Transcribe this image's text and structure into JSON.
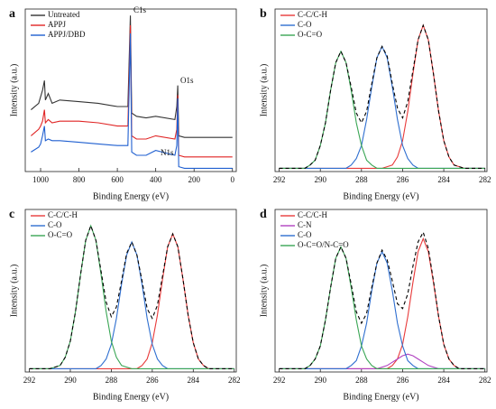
{
  "chart_data": [
    {
      "type": "line",
      "label": "a",
      "xlabel": "Binding Energy (eV)",
      "ylabel": "Intensity (a.u.)",
      "xlim": [
        1080,
        -20
      ],
      "xticks": [
        1000,
        800,
        600,
        400,
        200,
        0
      ],
      "ylim": [
        0,
        100
      ],
      "annotations": [
        "C1s",
        "O1s",
        "N1s"
      ],
      "x": [
        1050,
        1010,
        1000,
        990,
        980,
        975,
        960,
        940,
        900,
        800,
        700,
        600,
        545,
        532,
        525,
        500,
        450,
        400,
        300,
        290,
        285,
        280,
        250,
        200,
        100,
        0
      ],
      "series": [
        {
          "name": "Untreated",
          "color": "#333333",
          "values": [
            38,
            42,
            46,
            50,
            56,
            44,
            48,
            42,
            44,
            43,
            42,
            40,
            40,
            96,
            36,
            34,
            33,
            34,
            32,
            40,
            53,
            22,
            21,
            21,
            21,
            21
          ]
        },
        {
          "name": "APPJ",
          "color": "#e02424",
          "values": [
            22,
            26,
            28,
            31,
            38,
            30,
            32,
            30,
            31,
            31,
            30,
            28,
            28,
            90,
            22,
            20,
            20,
            22,
            20,
            26,
            47,
            10,
            9,
            9,
            9,
            9
          ]
        },
        {
          "name": "APPJ/DBD",
          "color": "#1f5fd0",
          "values": [
            12,
            15,
            17,
            22,
            28,
            19,
            20,
            19,
            19,
            18,
            17,
            16,
            16,
            85,
            12,
            10,
            10,
            13,
            10,
            16,
            45,
            3,
            2,
            2,
            2,
            2
          ]
        }
      ]
    },
    {
      "type": "line",
      "label": "b",
      "xlabel": "Binding Energy (eV)",
      "ylabel": "Intensity (a.u.)",
      "xlim": [
        292.2,
        281.9
      ],
      "xticks": [
        292,
        290,
        288,
        286,
        284,
        282
      ],
      "ylim": [
        0,
        100
      ],
      "x": [
        292,
        291.75,
        291.5,
        291.25,
        291,
        290.75,
        290.5,
        290.25,
        290,
        289.75,
        289.5,
        289.25,
        289,
        288.75,
        288.5,
        288.25,
        288,
        287.75,
        287.5,
        287.25,
        287,
        286.75,
        286.5,
        286.25,
        286,
        285.75,
        285.5,
        285.25,
        285,
        284.75,
        284.5,
        284.25,
        284,
        283.75,
        283.5,
        283.25,
        283,
        282.75,
        282.5,
        282.25,
        282
      ],
      "series": [
        {
          "name": "C-C/C-H",
          "color": "#e83a3a",
          "values": [
            2,
            2,
            2,
            2,
            2,
            2,
            2,
            2,
            2,
            2,
            2,
            2,
            2,
            2,
            2,
            2,
            2,
            2,
            2,
            2,
            2,
            3,
            4,
            9,
            19,
            37,
            60,
            81,
            90,
            81,
            60,
            37,
            19,
            9,
            4,
            3,
            2,
            2,
            2,
            2,
            2
          ]
        },
        {
          "name": "C-O",
          "color": "#2f6fd0",
          "values": [
            2,
            2,
            2,
            2,
            2,
            2,
            2,
            2,
            2,
            2,
            2,
            2,
            2,
            2,
            4,
            8,
            16,
            32,
            52,
            70,
            77,
            70,
            52,
            32,
            16,
            8,
            4,
            2,
            2,
            2,
            2,
            2,
            2,
            2,
            2,
            2,
            2,
            2,
            2,
            2,
            2
          ]
        },
        {
          "name": "O-C=O",
          "color": "#3aa655",
          "values": [
            2,
            2,
            2,
            2,
            2,
            2,
            4,
            7,
            16,
            30,
            50,
            67,
            74,
            67,
            50,
            30,
            16,
            7,
            4,
            2,
            2,
            2,
            2,
            2,
            2,
            2,
            2,
            2,
            2,
            2,
            2,
            2,
            2,
            2,
            2,
            2,
            2,
            2,
            2,
            2,
            2
          ]
        }
      ],
      "envelope": {
        "color": "#000000",
        "dash": true,
        "values": [
          2,
          2,
          2,
          2,
          2,
          2,
          4,
          7,
          16,
          30,
          50,
          67,
          74,
          67,
          52,
          36,
          30,
          37,
          54,
          70,
          77,
          71,
          54,
          39,
          33,
          43,
          62,
          81,
          90,
          81,
          60,
          37,
          19,
          9,
          4,
          3,
          2,
          2,
          2,
          2,
          2
        ]
      }
    },
    {
      "type": "line",
      "label": "c",
      "xlabel": "Binding Energy (eV)",
      "ylabel": "Intensity (a.u.)",
      "xlim": [
        292.2,
        281.9
      ],
      "xticks": [
        292,
        290,
        288,
        286,
        284,
        282
      ],
      "ylim": [
        0,
        100
      ],
      "x": [
        292,
        291.75,
        291.5,
        291.25,
        291,
        290.75,
        290.5,
        290.25,
        290,
        289.75,
        289.5,
        289.25,
        289,
        288.75,
        288.5,
        288.25,
        288,
        287.75,
        287.5,
        287.25,
        287,
        286.75,
        286.5,
        286.25,
        286,
        285.75,
        285.5,
        285.25,
        285,
        284.75,
        284.5,
        284.25,
        284,
        283.75,
        283.5,
        283.25,
        283,
        282.75,
        282.5,
        282.25,
        282
      ],
      "series": [
        {
          "name": "C-C/C-H",
          "color": "#e83a3a",
          "values": [
            2,
            2,
            2,
            2,
            2,
            2,
            2,
            2,
            2,
            2,
            2,
            2,
            2,
            2,
            2,
            2,
            2,
            2,
            2,
            2,
            2,
            2,
            4,
            8,
            18,
            35,
            57,
            77,
            85,
            77,
            57,
            35,
            18,
            8,
            4,
            2,
            2,
            2,
            2,
            2,
            2
          ]
        },
        {
          "name": "C-O",
          "color": "#2f6fd0",
          "values": [
            2,
            2,
            2,
            2,
            2,
            2,
            2,
            2,
            2,
            2,
            2,
            2,
            2,
            2,
            4,
            8,
            17,
            33,
            54,
            72,
            80,
            72,
            54,
            33,
            17,
            8,
            4,
            2,
            2,
            2,
            2,
            2,
            2,
            2,
            2,
            2,
            2,
            2,
            2,
            2,
            2
          ]
        },
        {
          "name": "O-C=O",
          "color": "#3aa655",
          "values": [
            2,
            2,
            2,
            2,
            2,
            3,
            4,
            9,
            19,
            37,
            60,
            81,
            90,
            81,
            60,
            37,
            19,
            9,
            4,
            3,
            2,
            2,
            2,
            2,
            2,
            2,
            2,
            2,
            2,
            2,
            2,
            2,
            2,
            2,
            2,
            2,
            2,
            2,
            2,
            2,
            2
          ]
        }
      ],
      "envelope": {
        "color": "#000000",
        "dash": true,
        "values": [
          2,
          2,
          2,
          2,
          2,
          3,
          4,
          9,
          19,
          37,
          60,
          81,
          90,
          81,
          62,
          43,
          34,
          40,
          56,
          73,
          80,
          72,
          56,
          39,
          33,
          41,
          59,
          77,
          85,
          77,
          57,
          35,
          18,
          8,
          4,
          2,
          2,
          2,
          2,
          2,
          2
        ]
      }
    },
    {
      "type": "line",
      "label": "d",
      "xlabel": "Binding Energy (eV)",
      "ylabel": "Intensity (a.u.)",
      "xlim": [
        292.2,
        281.9
      ],
      "xticks": [
        292,
        290,
        288,
        286,
        284,
        282
      ],
      "ylim": [
        0,
        100
      ],
      "x": [
        292,
        291.75,
        291.5,
        291.25,
        291,
        290.75,
        290.5,
        290.25,
        290,
        289.75,
        289.5,
        289.25,
        289,
        288.75,
        288.5,
        288.25,
        288,
        287.75,
        287.5,
        287.25,
        287,
        286.75,
        286.5,
        286.25,
        286,
        285.75,
        285.5,
        285.25,
        285,
        284.75,
        284.5,
        284.25,
        284,
        283.75,
        283.5,
        283.25,
        283,
        282.75,
        282.5,
        282.25,
        282
      ],
      "series": [
        {
          "name": "C-C/C-H",
          "color": "#e83a3a",
          "values": [
            2,
            2,
            2,
            2,
            2,
            2,
            2,
            2,
            2,
            2,
            2,
            2,
            2,
            2,
            2,
            2,
            2,
            2,
            2,
            2,
            2,
            2,
            4,
            8,
            17,
            34,
            55,
            74,
            82,
            74,
            55,
            34,
            17,
            8,
            4,
            2,
            2,
            2,
            2,
            2,
            2
          ]
        },
        {
          "name": "C-N",
          "color": "#b040c0",
          "values": [
            2,
            2,
            2,
            2,
            2,
            2,
            2,
            2,
            2,
            2,
            2,
            2,
            2,
            2,
            2,
            2,
            2,
            2,
            2,
            2,
            3,
            4,
            6,
            8,
            10,
            11,
            10,
            8,
            6,
            4,
            3,
            2,
            2,
            2,
            2,
            2,
            2,
            2,
            2,
            2,
            2
          ]
        },
        {
          "name": "C-O",
          "color": "#2f6fd0",
          "values": [
            2,
            2,
            2,
            2,
            2,
            2,
            2,
            2,
            2,
            2,
            2,
            2,
            2,
            2,
            4,
            7,
            16,
            30,
            50,
            67,
            74,
            67,
            50,
            30,
            16,
            7,
            4,
            2,
            2,
            2,
            2,
            2,
            2,
            2,
            2,
            2,
            2,
            2,
            2,
            2,
            2
          ]
        },
        {
          "name": "O-C=O/N-C=O",
          "color": "#3aa655",
          "values": [
            2,
            2,
            2,
            2,
            2,
            2,
            4,
            8,
            16,
            32,
            52,
            70,
            77,
            70,
            52,
            32,
            16,
            8,
            4,
            2,
            2,
            2,
            2,
            2,
            2,
            2,
            2,
            2,
            2,
            2,
            2,
            2,
            2,
            2,
            2,
            2,
            2,
            2,
            2,
            2,
            2
          ]
        }
      ],
      "envelope": {
        "color": "#000000",
        "dash": true,
        "values": [
          2,
          2,
          2,
          2,
          2,
          2,
          4,
          8,
          16,
          32,
          52,
          70,
          77,
          70,
          54,
          37,
          30,
          36,
          52,
          67,
          75,
          69,
          56,
          42,
          39,
          48,
          65,
          80,
          86,
          76,
          56,
          34,
          17,
          8,
          4,
          2,
          2,
          2,
          2,
          2,
          2
        ]
      }
    }
  ]
}
